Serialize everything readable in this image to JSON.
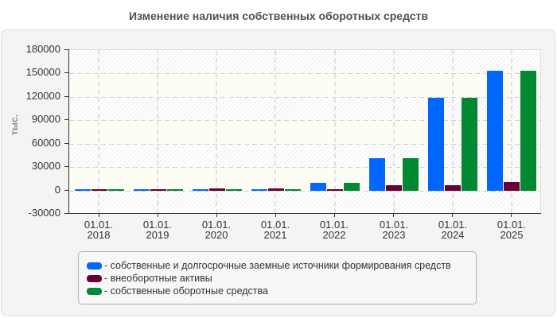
{
  "title": "Изменение наличия собственных оборотных средств",
  "yaxis": {
    "label": "тыс.",
    "tick_labels": [
      "180000",
      "150000",
      "120000",
      "90000",
      "60000",
      "30000",
      "0",
      "-30000"
    ]
  },
  "xaxis": {
    "labels": [
      {
        "line1": "01.01.",
        "line2": "2018"
      },
      {
        "line1": "01.01.",
        "line2": "2019"
      },
      {
        "line1": "01.01.",
        "line2": "2020"
      },
      {
        "line1": "01.01.",
        "line2": "2021"
      },
      {
        "line1": "01.01.",
        "line2": "2022"
      },
      {
        "line1": "01.01.",
        "line2": "2023"
      },
      {
        "line1": "01.01.",
        "line2": "2024"
      },
      {
        "line1": "01.01.",
        "line2": "2025"
      }
    ]
  },
  "legend": {
    "items": [
      {
        "label": "- собственные и долгосрочные заемные источники формирования средств",
        "color": "#0066ff"
      },
      {
        "label": "- внеоборотные активы",
        "color": "#660033"
      },
      {
        "label": "- собственные оборотные средства",
        "color": "#008833"
      }
    ]
  },
  "chart_data": {
    "type": "bar",
    "title": "Изменение наличия собственных оборотных средств",
    "xlabel": "",
    "ylabel": "тыс.",
    "categories": [
      "01.01.2018",
      "01.01.2019",
      "01.01.2020",
      "01.01.2021",
      "01.01.2022",
      "01.01.2023",
      "01.01.2024",
      "01.01.2025"
    ],
    "ylim": [
      -30000,
      180000
    ],
    "yticks": [
      180000,
      150000,
      120000,
      90000,
      60000,
      30000,
      0,
      -30000
    ],
    "grid": true,
    "legend_position": "bottom",
    "series": [
      {
        "name": "собственные и долгосрочные заемные источники формирования средств",
        "color": "#0066ff",
        "values": [
          2000,
          2000,
          2000,
          2000,
          10000,
          41000,
          119000,
          154000
        ]
      },
      {
        "name": "внеоборотные активы",
        "color": "#660033",
        "values": [
          2000,
          2000,
          3000,
          3000,
          2000,
          6500,
          7000,
          11000
        ]
      },
      {
        "name": "собственные оборотные средства",
        "color": "#008833",
        "values": [
          2000,
          2000,
          2000,
          2000,
          10000,
          41000,
          119000,
          154000
        ]
      }
    ]
  }
}
